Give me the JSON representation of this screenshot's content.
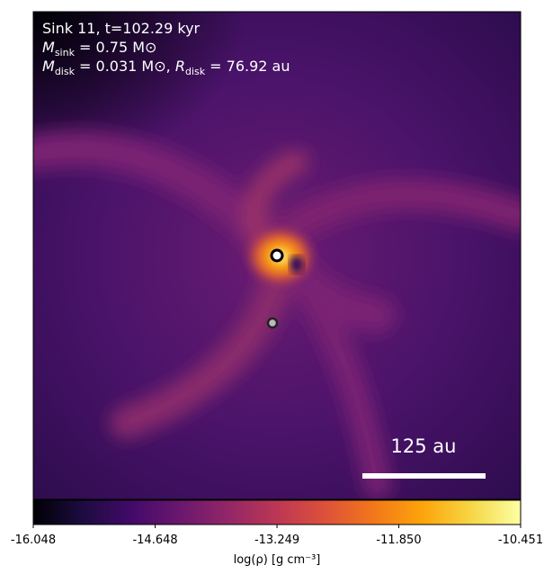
{
  "chart_data": {
    "type": "image",
    "annotations": [
      {
        "text": "Sink 11, t=102.29 kyr"
      },
      {
        "symbol": "M",
        "subscript": "sink",
        "text": " = 0.75 M⊙"
      },
      {
        "symbol": "M",
        "subscript": "disk",
        "text": " = 0.031 M⊙, ",
        "symbol2": "R",
        "subscript2": "disk",
        "text2": " = 76.92 au"
      }
    ],
    "scale_bar_label": "125 au",
    "colorbar": {
      "label": "log(ρ) [g cm⁻³]",
      "xlim": [
        -16.048,
        -10.451
      ],
      "xticks": [
        -16.048,
        -14.648,
        -13.249,
        {
          "value": -11.85,
          "label": "-11.850"
        },
        -10.451
      ],
      "colors": [
        "#000004",
        "#1c0c3f",
        "#420a68",
        "#6a176e",
        "#932667",
        "#bc3754",
        "#dd513a",
        "#f37819",
        "#fca50a",
        "#f6d746",
        "#fcffa4"
      ]
    }
  }
}
